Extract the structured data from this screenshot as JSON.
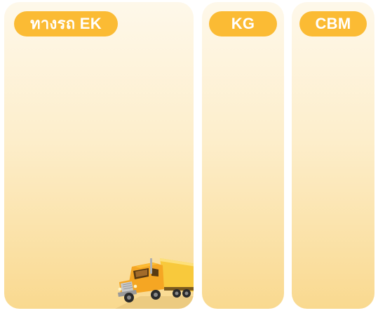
{
  "panels": [
    {
      "label": "ทางรถ EK"
    },
    {
      "label": "KG"
    },
    {
      "label": "CBM"
    }
  ],
  "colors": {
    "pill": "#fbbb34",
    "panel_top": "#fef8ea",
    "panel_bottom": "#f9d98f",
    "truck_body": "#f5a623"
  },
  "icons": [
    "truck-icon"
  ]
}
